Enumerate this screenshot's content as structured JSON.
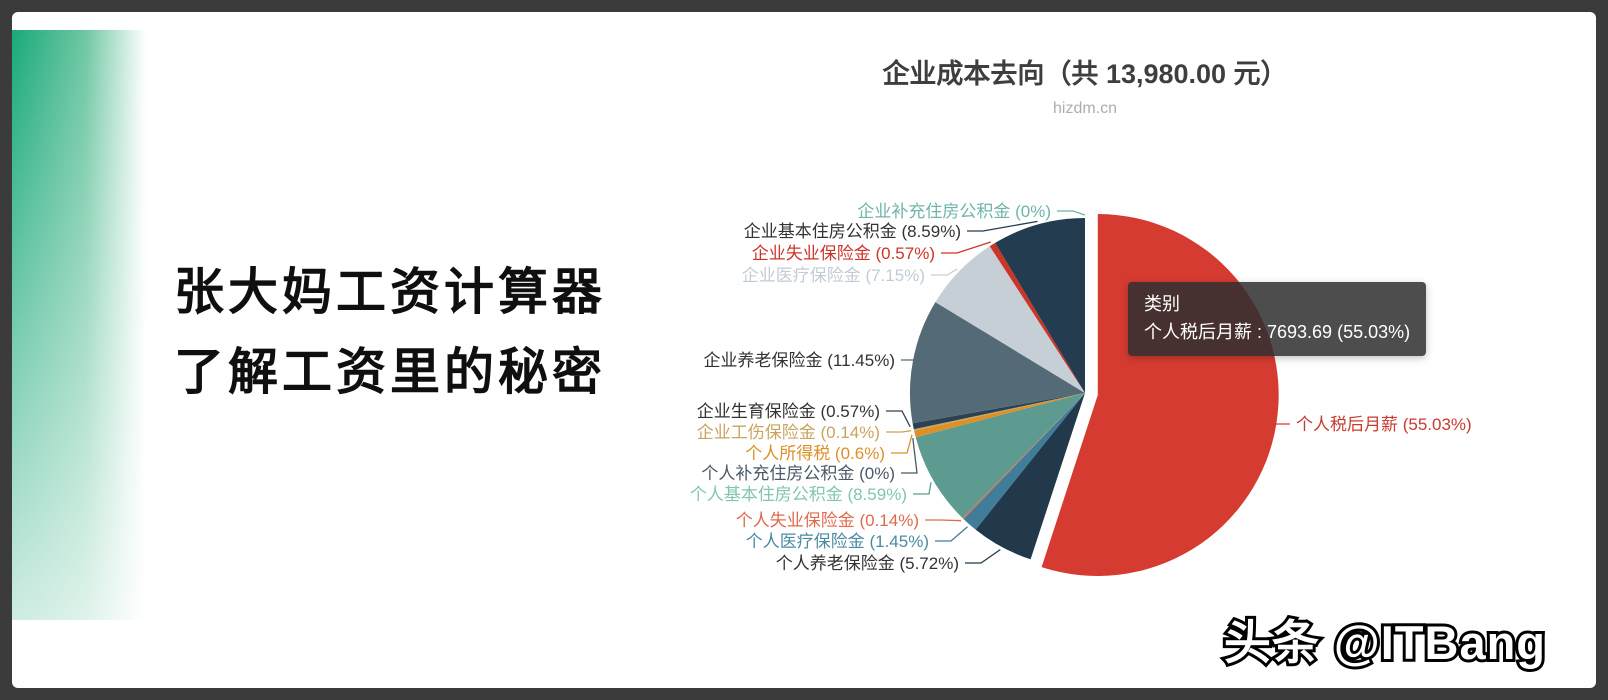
{
  "left_panel": {
    "title_line1": "张大妈工资计算器",
    "title_line2": "了解工资里的秘密"
  },
  "tooltip": {
    "header": "类别",
    "value_line": "个人税后月薪 : 7693.69 (55.03%)"
  },
  "watermark": {
    "text": "头条 @ITBang"
  },
  "chart_data": {
    "type": "pie",
    "title": "企业成本去向（共 13,980.00 元）",
    "subtitle": "hizdm.cn",
    "total_label": "共 13,980.00 元",
    "hovered_tooltip": {
      "category_header": "类别",
      "series": "个人税后月薪",
      "value": 7693.69,
      "percent": 55.03
    },
    "slices": [
      {
        "name": "个人税后月薪",
        "percent": 55.03,
        "label": "个人税后月薪 (55.03%)",
        "color": "#d63b31",
        "label_color": "#c83a2f",
        "hovered": true
      },
      {
        "name": "个人养老保险金",
        "percent": 5.72,
        "label": "个人养老保险金 (5.72%)",
        "color": "#21394b",
        "label_color": "#333333",
        "hovered": false
      },
      {
        "name": "个人医疗保险金",
        "percent": 1.45,
        "label": "个人医疗保险金 (1.45%)",
        "color": "#3f7d98",
        "label_color": "#4b8ba2",
        "hovered": false
      },
      {
        "name": "个人失业保险金",
        "percent": 0.14,
        "label": "个人失业保险金 (0.14%)",
        "color": "#e06a4e",
        "label_color": "#e06a4e",
        "hovered": false
      },
      {
        "name": "个人基本住房公积金",
        "percent": 8.59,
        "label": "个人基本住房公积金 (8.59%)",
        "color": "#5d9a90",
        "label_color": "#82c7ac",
        "hovered": false
      },
      {
        "name": "个人补充住房公积金",
        "percent": 0,
        "label": "个人补充住房公积金 (0%)",
        "color": "#4a5a68",
        "label_color": "#4a5a68",
        "hovered": false
      },
      {
        "name": "个人所得税",
        "percent": 0.6,
        "label": "个人所得税 (0.6%)",
        "color": "#dd9027",
        "label_color": "#dd9027",
        "hovered": false
      },
      {
        "name": "企业工伤保险金",
        "percent": 0.14,
        "label": "企业工伤保险金 (0.14%)",
        "color": "#c9a45f",
        "label_color": "#c9a45f",
        "hovered": false
      },
      {
        "name": "企业生育保险金",
        "percent": 0.57,
        "label": "企业生育保险金 (0.57%)",
        "color": "#2b4254",
        "label_color": "#333333",
        "hovered": false
      },
      {
        "name": "企业养老保险金",
        "percent": 11.45,
        "label": "企业养老保险金 (11.45%)",
        "color": "#546b77",
        "label_color": "#333333",
        "hovered": false
      },
      {
        "name": "企业医疗保险金",
        "percent": 7.15,
        "label": "企业医疗保险金 (7.15%)",
        "color": "#c6cfd6",
        "label_color": "#c3ccd4",
        "hovered": false
      },
      {
        "name": "企业失业保险金",
        "percent": 0.57,
        "label": "企业失业保险金 (0.57%)",
        "color": "#cd3428",
        "label_color": "#cd3428",
        "hovered": false
      },
      {
        "name": "企业基本住房公积金",
        "percent": 8.59,
        "label": "企业基本住房公积金 (8.59%)",
        "color": "#233c50",
        "label_color": "#333333",
        "hovered": false
      },
      {
        "name": "企业补充住房公积金",
        "percent": 0,
        "label": "企业补充住房公积金 (0%)",
        "color": "#6fb5ab",
        "label_color": "#6fb5ab",
        "hovered": false
      }
    ]
  }
}
